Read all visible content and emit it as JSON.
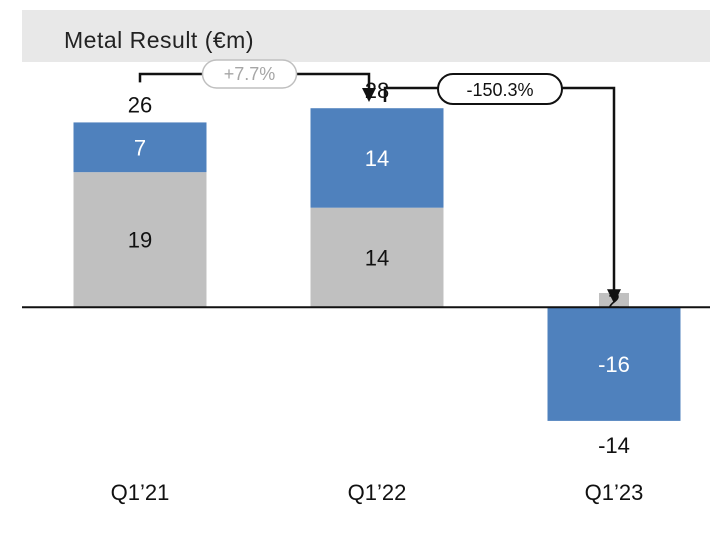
{
  "chart_data": {
    "type": "bar",
    "title": "Metal Result (€m)",
    "categories": [
      "Q1’21",
      "Q1’22",
      "Q1’23"
    ],
    "series": [
      {
        "values": [
          19,
          14,
          2
        ],
        "color": "#c0c0c0",
        "label_color": "#111111"
      },
      {
        "values": [
          7,
          14,
          -16
        ],
        "color": "#4f81bd",
        "label_color": "#ffffff"
      }
    ],
    "totals": [
      "26",
      "28",
      "-14"
    ],
    "changes": [
      {
        "from": 0,
        "to": 1,
        "label": "+7.7%",
        "style": "muted"
      },
      {
        "from": 1,
        "to": 2,
        "label": "-150.3%",
        "style": "emphasis"
      }
    ],
    "ylim": [
      -17,
      30
    ],
    "grid": false,
    "legend": "none"
  }
}
